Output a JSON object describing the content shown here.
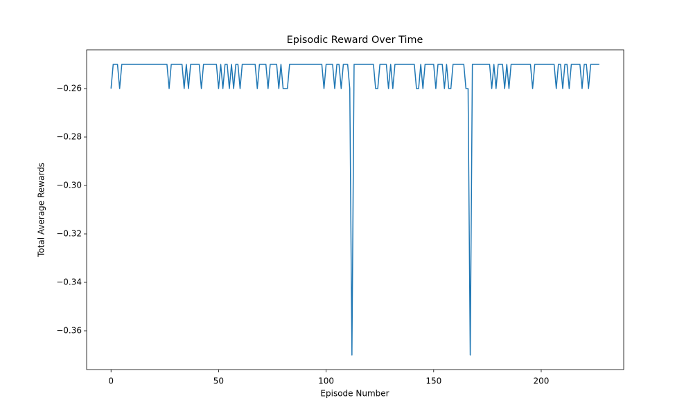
{
  "chart_data": {
    "type": "line",
    "title": "Episodic Reward Over Time",
    "x_label": "Episode Number",
    "y_label": "Total Average Rewards",
    "color": "#1f77b4",
    "grid": false,
    "x": [
      0,
      1,
      2,
      3,
      4,
      5,
      6,
      7,
      8,
      9,
      10,
      11,
      12,
      13,
      14,
      15,
      16,
      17,
      18,
      19,
      20,
      21,
      22,
      23,
      24,
      25,
      26,
      27,
      28,
      29,
      30,
      31,
      32,
      33,
      34,
      35,
      36,
      37,
      38,
      39,
      40,
      41,
      42,
      43,
      44,
      45,
      46,
      47,
      48,
      49,
      50,
      51,
      52,
      53,
      54,
      55,
      56,
      57,
      58,
      59,
      60,
      61,
      62,
      63,
      64,
      65,
      66,
      67,
      68,
      69,
      70,
      71,
      72,
      73,
      74,
      75,
      76,
      77,
      78,
      79,
      80,
      81,
      82,
      83,
      84,
      85,
      86,
      87,
      88,
      89,
      90,
      91,
      92,
      93,
      94,
      95,
      96,
      97,
      98,
      99,
      100,
      101,
      102,
      103,
      104,
      105,
      106,
      107,
      108,
      109,
      110,
      111,
      112,
      113,
      114,
      115,
      116,
      117,
      118,
      119,
      120,
      121,
      122,
      123,
      124,
      125,
      126,
      127,
      128,
      129,
      130,
      131,
      132,
      133,
      134,
      135,
      136,
      137,
      138,
      139,
      140,
      141,
      142,
      143,
      144,
      145,
      146,
      147,
      148,
      149,
      150,
      151,
      152,
      153,
      154,
      155,
      156,
      157,
      158,
      159,
      160,
      161,
      162,
      163,
      164,
      165,
      166,
      167,
      168,
      169,
      170,
      171,
      172,
      173,
      174,
      175,
      176,
      177,
      178,
      179,
      180,
      181,
      182,
      183,
      184,
      185,
      186,
      187,
      188,
      189,
      190,
      191,
      192,
      193,
      194,
      195,
      196,
      197,
      198,
      199,
      200,
      201,
      202,
      203,
      204,
      205,
      206,
      207,
      208,
      209,
      210,
      211,
      212,
      213,
      214,
      215,
      216,
      217,
      218,
      219,
      220,
      221,
      222,
      223,
      224,
      225,
      226,
      227
    ],
    "values": [
      -0.26,
      -0.25,
      -0.25,
      -0.25,
      -0.26,
      -0.25,
      -0.25,
      -0.25,
      -0.25,
      -0.25,
      -0.25,
      -0.25,
      -0.25,
      -0.25,
      -0.25,
      -0.25,
      -0.25,
      -0.25,
      -0.25,
      -0.25,
      -0.25,
      -0.25,
      -0.25,
      -0.25,
      -0.25,
      -0.25,
      -0.25,
      -0.26,
      -0.25,
      -0.25,
      -0.25,
      -0.25,
      -0.25,
      -0.25,
      -0.26,
      -0.25,
      -0.26,
      -0.25,
      -0.25,
      -0.25,
      -0.25,
      -0.25,
      -0.26,
      -0.25,
      -0.25,
      -0.25,
      -0.25,
      -0.25,
      -0.25,
      -0.25,
      -0.26,
      -0.25,
      -0.26,
      -0.25,
      -0.25,
      -0.26,
      -0.25,
      -0.26,
      -0.25,
      -0.25,
      -0.26,
      -0.25,
      -0.25,
      -0.25,
      -0.25,
      -0.25,
      -0.25,
      -0.25,
      -0.26,
      -0.25,
      -0.25,
      -0.25,
      -0.25,
      -0.26,
      -0.25,
      -0.25,
      -0.25,
      -0.25,
      -0.26,
      -0.25,
      -0.26,
      -0.26,
      -0.26,
      -0.25,
      -0.25,
      -0.25,
      -0.25,
      -0.25,
      -0.25,
      -0.25,
      -0.25,
      -0.25,
      -0.25,
      -0.25,
      -0.25,
      -0.25,
      -0.25,
      -0.25,
      -0.25,
      -0.26,
      -0.25,
      -0.25,
      -0.25,
      -0.25,
      -0.26,
      -0.25,
      -0.25,
      -0.26,
      -0.25,
      -0.25,
      -0.25,
      -0.26,
      -0.37,
      -0.25,
      -0.25,
      -0.25,
      -0.25,
      -0.25,
      -0.25,
      -0.25,
      -0.25,
      -0.25,
      -0.25,
      -0.26,
      -0.26,
      -0.25,
      -0.25,
      -0.25,
      -0.25,
      -0.26,
      -0.25,
      -0.26,
      -0.25,
      -0.25,
      -0.25,
      -0.25,
      -0.25,
      -0.25,
      -0.25,
      -0.25,
      -0.25,
      -0.25,
      -0.26,
      -0.26,
      -0.25,
      -0.26,
      -0.25,
      -0.25,
      -0.25,
      -0.25,
      -0.25,
      -0.26,
      -0.25,
      -0.25,
      -0.25,
      -0.26,
      -0.25,
      -0.26,
      -0.26,
      -0.25,
      -0.25,
      -0.25,
      -0.25,
      -0.25,
      -0.25,
      -0.26,
      -0.26,
      -0.37,
      -0.25,
      -0.25,
      -0.25,
      -0.25,
      -0.25,
      -0.25,
      -0.25,
      -0.25,
      -0.25,
      -0.26,
      -0.25,
      -0.26,
      -0.25,
      -0.25,
      -0.25,
      -0.26,
      -0.25,
      -0.26,
      -0.25,
      -0.25,
      -0.25,
      -0.25,
      -0.25,
      -0.25,
      -0.25,
      -0.25,
      -0.25,
      -0.25,
      -0.26,
      -0.25,
      -0.25,
      -0.25,
      -0.25,
      -0.25,
      -0.25,
      -0.25,
      -0.25,
      -0.25,
      -0.25,
      -0.26,
      -0.25,
      -0.25,
      -0.26,
      -0.25,
      -0.25,
      -0.26,
      -0.25,
      -0.25,
      -0.25,
      -0.25,
      -0.25,
      -0.26,
      -0.25,
      -0.25,
      -0.26,
      -0.25,
      -0.25,
      -0.25,
      -0.25,
      -0.25
    ],
    "xlim": [
      -11.35,
      238.35
    ],
    "xticks": [
      0,
      50,
      100,
      150,
      200
    ],
    "ylim": [
      -0.376,
      -0.244
    ],
    "yticks": [
      {
        "value": -0.36,
        "label": "−0.36"
      },
      {
        "value": -0.34,
        "label": "−0.34"
      },
      {
        "value": -0.32,
        "label": "−0.32"
      },
      {
        "value": -0.3,
        "label": "−0.30"
      },
      {
        "value": -0.28,
        "label": "−0.28"
      },
      {
        "value": -0.26,
        "label": "−0.26"
      }
    ]
  }
}
